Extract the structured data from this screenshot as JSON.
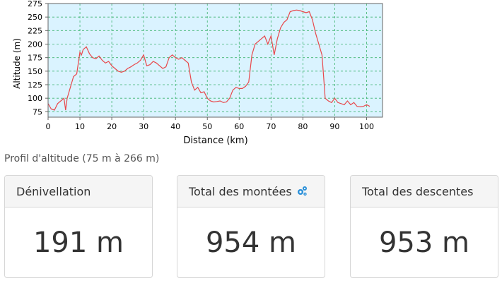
{
  "chart_data": {
    "type": "line",
    "xlabel": "Distance (km)",
    "ylabel": "Altitude (m)",
    "xlim": [
      0,
      105
    ],
    "ylim": [
      65,
      275
    ],
    "x_ticks": [
      0,
      10,
      20,
      30,
      40,
      50,
      60,
      70,
      80,
      90,
      100
    ],
    "y_ticks": [
      75,
      100,
      125,
      150,
      175,
      200,
      225,
      250,
      275
    ],
    "grid": true,
    "series_color": "#e8474b",
    "plot_bg": "#daf3ff",
    "series": [
      {
        "x": [
          0,
          1,
          2,
          3,
          4,
          5,
          5.5,
          6,
          7,
          8,
          9,
          10,
          10.5,
          11,
          12,
          13,
          14,
          15,
          16,
          17,
          18,
          19,
          20,
          21,
          22,
          23,
          24,
          25,
          26,
          27,
          28,
          29,
          30,
          31,
          32,
          33,
          34,
          35,
          36,
          37,
          38,
          39,
          40,
          41,
          42,
          43,
          44,
          45,
          46,
          47,
          48,
          49,
          50,
          51,
          52,
          53,
          54,
          55,
          56,
          57,
          58,
          59,
          60,
          61,
          62,
          63,
          64,
          65,
          66,
          67,
          68,
          69,
          70,
          71,
          72,
          73,
          74,
          75,
          76,
          77,
          78,
          79,
          80,
          81,
          82,
          83,
          84,
          85,
          86,
          86.5,
          87,
          88,
          89,
          90,
          91,
          92,
          93,
          94,
          95,
          96,
          97,
          98,
          99,
          100,
          101
        ],
        "y": [
          90,
          80,
          78,
          90,
          95,
          100,
          78,
          100,
          120,
          140,
          145,
          185,
          180,
          190,
          195,
          182,
          175,
          173,
          178,
          170,
          165,
          168,
          160,
          155,
          150,
          148,
          150,
          155,
          158,
          162,
          165,
          170,
          180,
          160,
          162,
          168,
          165,
          160,
          155,
          158,
          175,
          180,
          175,
          172,
          175,
          170,
          165,
          130,
          115,
          120,
          110,
          112,
          100,
          95,
          93,
          94,
          95,
          92,
          93,
          100,
          115,
          120,
          118,
          118,
          122,
          130,
          180,
          200,
          205,
          210,
          215,
          200,
          215,
          180,
          210,
          230,
          240,
          245,
          260,
          262,
          263,
          262,
          260,
          258,
          260,
          245,
          220,
          200,
          180,
          140,
          100,
          95,
          92,
          100,
          92,
          90,
          88,
          95,
          88,
          92,
          85,
          84,
          85,
          88,
          85
        ]
      }
    ]
  },
  "caption": "Profil d'altitude (75 m à 266 m)",
  "cards": [
    {
      "title": "Dénivellation",
      "value": "191 m"
    },
    {
      "title": "Total des montées",
      "value": "954 m",
      "icon": "gears-icon"
    },
    {
      "title": "Total des descentes",
      "value": "953 m"
    }
  ]
}
